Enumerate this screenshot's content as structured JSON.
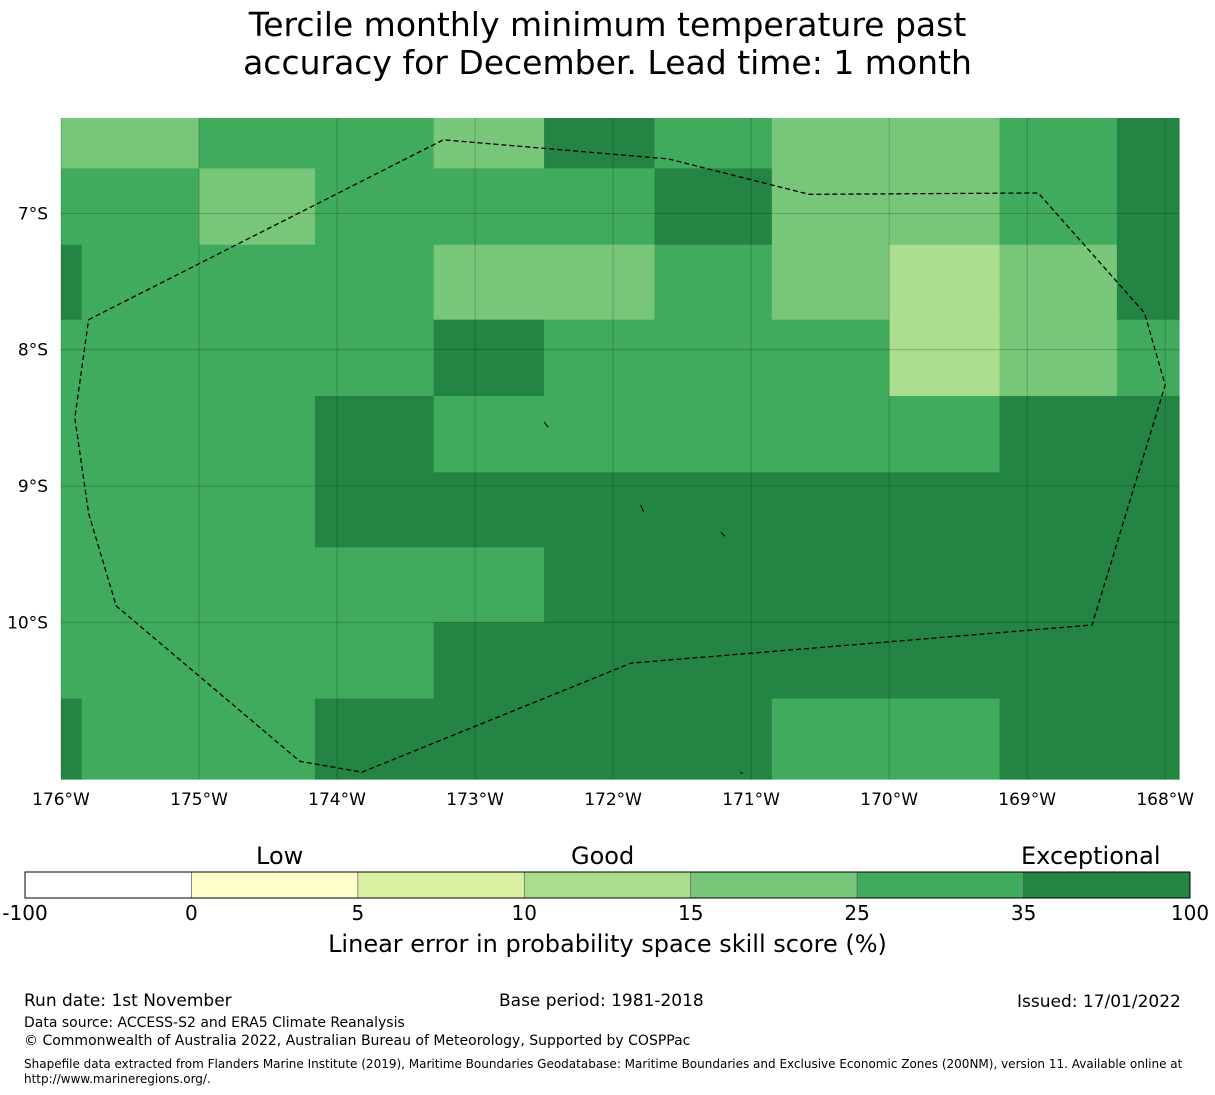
{
  "title_lines": [
    "Tercile monthly minimum temperature past",
    "accuracy for December. Lead time: 1 month"
  ],
  "map": {
    "lon_range": [
      -176,
      -167.9
    ],
    "lat_range": [
      -11.15,
      -6.3
    ],
    "lon_ticks": [
      {
        "value": -176,
        "label": "176°W"
      },
      {
        "value": -175,
        "label": "175°W"
      },
      {
        "value": -174,
        "label": "174°W"
      },
      {
        "value": -173,
        "label": "173°W"
      },
      {
        "value": -172,
        "label": "172°W"
      },
      {
        "value": -171,
        "label": "171°W"
      },
      {
        "value": -170,
        "label": "170°W"
      },
      {
        "value": -169,
        "label": "169°W"
      },
      {
        "value": -168,
        "label": "168°W"
      }
    ],
    "lat_ticks": [
      {
        "value": -7,
        "label": "7°S"
      },
      {
        "value": -8,
        "label": "8°S"
      },
      {
        "value": -9,
        "label": "9°S"
      },
      {
        "value": -10,
        "label": "10°S"
      }
    ],
    "grid": true,
    "color_classes": {
      "c4": "#abdd8f",
      "c5": "#78c679",
      "c6": "#41ab5d",
      "c7": "#238443"
    },
    "cells": [
      {
        "lon0": -176,
        "lon1": -175,
        "lat0": -6.3,
        "lat1": -6.67,
        "c": "c5"
      },
      {
        "lon0": -175,
        "lon1": -173.3,
        "lat0": -6.3,
        "lat1": -6.67,
        "c": "c6"
      },
      {
        "lon0": -173.3,
        "lon1": -172.5,
        "lat0": -6.3,
        "lat1": -6.67,
        "c": "c5"
      },
      {
        "lon0": -172.5,
        "lon1": -171.7,
        "lat0": -6.3,
        "lat1": -6.67,
        "c": "c7"
      },
      {
        "lon0": -171.7,
        "lon1": -170.85,
        "lat0": -6.3,
        "lat1": -6.67,
        "c": "c6"
      },
      {
        "lon0": -170.85,
        "lon1": -169.2,
        "lat0": -6.3,
        "lat1": -6.67,
        "c": "c5"
      },
      {
        "lon0": -169.2,
        "lon1": -168.35,
        "lat0": -6.3,
        "lat1": -6.67,
        "c": "c6"
      },
      {
        "lon0": -168.35,
        "lon1": -167.9,
        "lat0": -6.3,
        "lat1": -6.67,
        "c": "c7"
      },
      {
        "lon0": -176,
        "lon1": -175,
        "lat0": -6.67,
        "lat1": -7.23,
        "c": "c6"
      },
      {
        "lon0": -175,
        "lon1": -174.16,
        "lat0": -6.67,
        "lat1": -7.23,
        "c": "c5"
      },
      {
        "lon0": -174.16,
        "lon1": -171.7,
        "lat0": -6.67,
        "lat1": -7.23,
        "c": "c6"
      },
      {
        "lon0": -171.7,
        "lon1": -170.85,
        "lat0": -6.67,
        "lat1": -7.23,
        "c": "c7"
      },
      {
        "lon0": -170.85,
        "lon1": -169.2,
        "lat0": -6.67,
        "lat1": -7.23,
        "c": "c5"
      },
      {
        "lon0": -169.2,
        "lon1": -168.35,
        "lat0": -6.67,
        "lat1": -7.23,
        "c": "c6"
      },
      {
        "lon0": -168.35,
        "lon1": -167.9,
        "lat0": -6.67,
        "lat1": -7.23,
        "c": "c7"
      },
      {
        "lon0": -176,
        "lon1": -175.85,
        "lat0": -7.23,
        "lat1": -7.78,
        "c": "c7"
      },
      {
        "lon0": -175.85,
        "lon1": -173.3,
        "lat0": -7.23,
        "lat1": -7.78,
        "c": "c6"
      },
      {
        "lon0": -173.3,
        "lon1": -171.7,
        "lat0": -7.23,
        "lat1": -7.78,
        "c": "c5"
      },
      {
        "lon0": -171.7,
        "lon1": -170.85,
        "lat0": -7.23,
        "lat1": -7.78,
        "c": "c6"
      },
      {
        "lon0": -170.85,
        "lon1": -170,
        "lat0": -7.23,
        "lat1": -7.78,
        "c": "c5"
      },
      {
        "lon0": -170,
        "lon1": -169.2,
        "lat0": -7.23,
        "lat1": -7.78,
        "c": "c4"
      },
      {
        "lon0": -169.2,
        "lon1": -168.35,
        "lat0": -7.23,
        "lat1": -7.78,
        "c": "c5"
      },
      {
        "lon0": -168.35,
        "lon1": -167.9,
        "lat0": -7.23,
        "lat1": -7.78,
        "c": "c7"
      },
      {
        "lon0": -176,
        "lon1": -173.3,
        "lat0": -7.78,
        "lat1": -8.34,
        "c": "c6"
      },
      {
        "lon0": -173.3,
        "lon1": -172.5,
        "lat0": -7.78,
        "lat1": -8.34,
        "c": "c7"
      },
      {
        "lon0": -172.5,
        "lon1": -170,
        "lat0": -7.78,
        "lat1": -8.34,
        "c": "c6"
      },
      {
        "lon0": -170,
        "lon1": -169.2,
        "lat0": -7.78,
        "lat1": -8.34,
        "c": "c4"
      },
      {
        "lon0": -169.2,
        "lon1": -168.35,
        "lat0": -7.78,
        "lat1": -8.34,
        "c": "c5"
      },
      {
        "lon0": -168.35,
        "lon1": -167.9,
        "lat0": -7.78,
        "lat1": -8.34,
        "c": "c6"
      },
      {
        "lon0": -176,
        "lon1": -174.16,
        "lat0": -8.34,
        "lat1": -8.9,
        "c": "c6"
      },
      {
        "lon0": -174.16,
        "lon1": -173.3,
        "lat0": -8.34,
        "lat1": -8.9,
        "c": "c7"
      },
      {
        "lon0": -173.3,
        "lon1": -169.2,
        "lat0": -8.34,
        "lat1": -8.9,
        "c": "c6"
      },
      {
        "lon0": -169.2,
        "lon1": -167.9,
        "lat0": -8.34,
        "lat1": -8.9,
        "c": "c7"
      },
      {
        "lon0": -176,
        "lon1": -174.16,
        "lat0": -8.9,
        "lat1": -9.45,
        "c": "c6"
      },
      {
        "lon0": -174.16,
        "lon1": -167.9,
        "lat0": -8.9,
        "lat1": -9.45,
        "c": "c7"
      },
      {
        "lon0": -176,
        "lon1": -172.5,
        "lat0": -9.45,
        "lat1": -10.0,
        "c": "c6"
      },
      {
        "lon0": -172.5,
        "lon1": -167.9,
        "lat0": -9.45,
        "lat1": -10.0,
        "c": "c7"
      },
      {
        "lon0": -176,
        "lon1": -173.3,
        "lat0": -10.0,
        "lat1": -10.56,
        "c": "c6"
      },
      {
        "lon0": -173.3,
        "lon1": -167.9,
        "lat0": -10.0,
        "lat1": -10.56,
        "c": "c7"
      },
      {
        "lon0": -176,
        "lon1": -175.85,
        "lat0": -10.56,
        "lat1": -11.15,
        "c": "c7"
      },
      {
        "lon0": -175.85,
        "lon1": -174.16,
        "lat0": -10.56,
        "lat1": -11.15,
        "c": "c6"
      },
      {
        "lon0": -174.16,
        "lon1": -170.85,
        "lat0": -10.56,
        "lat1": -11.15,
        "c": "c7"
      },
      {
        "lon0": -170.85,
        "lon1": -169.2,
        "lat0": -10.56,
        "lat1": -11.15,
        "c": "c6"
      },
      {
        "lon0": -169.2,
        "lon1": -167.9,
        "lat0": -10.56,
        "lat1": -11.15,
        "c": "c7"
      }
    ],
    "eez_boundary": [
      [
        -175.8,
        -7.78
      ],
      [
        -173.23,
        -6.46
      ],
      [
        -171.6,
        -6.6
      ],
      [
        -170.58,
        -6.86
      ],
      [
        -168.92,
        -6.85
      ],
      [
        -168.15,
        -7.73
      ],
      [
        -168.0,
        -8.26
      ],
      [
        -168.53,
        -10.02
      ],
      [
        -171.87,
        -10.3
      ],
      [
        -173.82,
        -11.1
      ],
      [
        -174.27,
        -11.02
      ],
      [
        -175.6,
        -9.88
      ],
      [
        -175.8,
        -9.2
      ],
      [
        -175.9,
        -8.5
      ],
      [
        -175.8,
        -7.78
      ]
    ],
    "islands": [
      [
        [
          -172.5,
          -8.53
        ],
        [
          -172.47,
          -8.57
        ]
      ],
      [
        [
          -171.8,
          -9.14
        ],
        [
          -171.78,
          -9.19
        ]
      ],
      [
        [
          -171.22,
          -9.34
        ],
        [
          -171.19,
          -9.37
        ]
      ],
      [
        [
          -171.08,
          -11.1
        ],
        [
          -171.06,
          -11.11
        ]
      ]
    ]
  },
  "legend": {
    "words": [
      "Low",
      "Good",
      "Exceptional"
    ],
    "bins": [
      {
        "from": -100,
        "to": 0,
        "color": "#ffffff"
      },
      {
        "from": 0,
        "to": 5,
        "color": "#ffffcc"
      },
      {
        "from": 5,
        "to": 10,
        "color": "#d9f0a3"
      },
      {
        "from": 10,
        "to": 15,
        "color": "#abdd8f"
      },
      {
        "from": 15,
        "to": 25,
        "color": "#78c679"
      },
      {
        "from": 25,
        "to": 35,
        "color": "#41ab5d"
      },
      {
        "from": 35,
        "to": 100,
        "color": "#238443"
      }
    ],
    "tick_labels": [
      "-100",
      "0",
      "5",
      "10",
      "15",
      "25",
      "35",
      "100"
    ],
    "title": "Linear error in probability space skill score (%)"
  },
  "footer": {
    "run_date": "Run date: 1st November",
    "base_period": "Base period: 1981-2018",
    "issued": "Issued: 17/01/2022",
    "data_source": "Data source: ACCESS-S2 and ERA5 Climate Reanalysis",
    "copyright": "© Commonwealth of Australia 2022, Australian Bureau of Meteorology, Supported by COSPPac",
    "shapefile_line1": "Shapefile data extracted from Flanders Marine Institute (2019), Maritime Boundaries Geodatabase: Maritime Boundaries and Exclusive Economic Zones (200NM), version 11. Available online at",
    "shapefile_line2": "http://www.marineregions.org/."
  }
}
